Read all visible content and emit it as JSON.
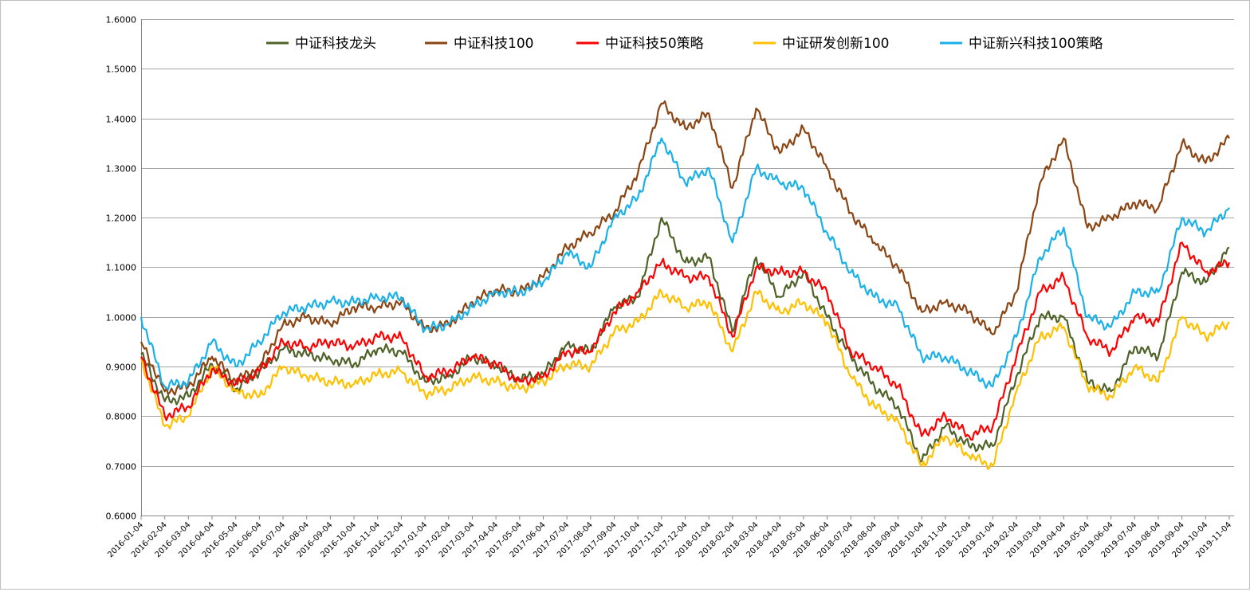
{
  "chart_data": {
    "type": "line",
    "title": "",
    "xlabel": "",
    "ylabel": "",
    "ylim": [
      0.6,
      1.6
    ],
    "ytick_step": 0.1,
    "y_tick_labels": [
      "0.6000",
      "0.7000",
      "0.8000",
      "0.9000",
      "1.0000",
      "1.1000",
      "1.2000",
      "1.3000",
      "1.4000",
      "1.5000",
      "1.6000"
    ],
    "grid": true,
    "legend_position": "top",
    "x": [
      "2016-01-04",
      "2016-02-04",
      "2016-03-04",
      "2016-04-04",
      "2016-05-04",
      "2016-06-04",
      "2016-07-04",
      "2016-08-04",
      "2016-09-04",
      "2016-10-04",
      "2016-11-04",
      "2016-12-04",
      "2017-01-04",
      "2017-02-04",
      "2017-03-04",
      "2017-04-04",
      "2017-05-04",
      "2017-06-04",
      "2017-07-04",
      "2017-08-04",
      "2017-09-04",
      "2017-10-04",
      "2017-11-04",
      "2017-12-04",
      "2018-01-04",
      "2018-02-04",
      "2018-03-04",
      "2018-04-04",
      "2018-05-04",
      "2018-06-04",
      "2018-07-04",
      "2018-08-04",
      "2018-09-04",
      "2018-10-04",
      "2018-11-04",
      "2018-12-04",
      "2019-01-04",
      "2019-02-04",
      "2019-03-04",
      "2019-04-04",
      "2019-05-04",
      "2019-06-04",
      "2019-07-04",
      "2019-08-04",
      "2019-09-04",
      "2019-10-04",
      "2019-11-04"
    ],
    "series": [
      {
        "name": "中证科技龙头",
        "color": "#4f6228",
        "values": [
          0.925,
          0.83,
          0.84,
          0.905,
          0.855,
          0.89,
          0.935,
          0.925,
          0.915,
          0.905,
          0.935,
          0.93,
          0.87,
          0.88,
          0.92,
          0.9,
          0.875,
          0.885,
          0.945,
          0.93,
          1.02,
          1.04,
          1.2,
          1.11,
          1.12,
          0.97,
          1.12,
          1.04,
          1.09,
          1.0,
          0.92,
          0.86,
          0.82,
          0.71,
          0.78,
          0.74,
          0.74,
          0.88,
          1.0,
          1.0,
          0.87,
          0.85,
          0.94,
          0.92,
          1.09,
          1.07,
          1.14
        ]
      },
      {
        "name": "中证科技100",
        "color": "#8b4513",
        "values": [
          0.95,
          0.85,
          0.86,
          0.92,
          0.87,
          0.9,
          0.985,
          1.0,
          0.985,
          1.02,
          1.02,
          1.03,
          0.975,
          0.985,
          1.03,
          1.055,
          1.05,
          1.08,
          1.14,
          1.17,
          1.21,
          1.29,
          1.43,
          1.38,
          1.41,
          1.26,
          1.42,
          1.33,
          1.38,
          1.3,
          1.21,
          1.15,
          1.1,
          1.01,
          1.03,
          1.01,
          0.965,
          1.05,
          1.27,
          1.36,
          1.18,
          1.2,
          1.23,
          1.22,
          1.35,
          1.31,
          1.36
        ]
      },
      {
        "name": "中证科技50策略",
        "color": "#ff0000",
        "values": [
          0.92,
          0.8,
          0.82,
          0.895,
          0.865,
          0.89,
          0.95,
          0.94,
          0.95,
          0.94,
          0.96,
          0.96,
          0.88,
          0.89,
          0.92,
          0.905,
          0.87,
          0.88,
          0.93,
          0.93,
          1.01,
          1.05,
          1.11,
          1.08,
          1.08,
          0.96,
          1.1,
          1.09,
          1.09,
          1.05,
          0.93,
          0.9,
          0.86,
          0.76,
          0.8,
          0.76,
          0.78,
          0.92,
          1.05,
          1.08,
          0.96,
          0.93,
          1.0,
          0.99,
          1.15,
          1.09,
          1.11
        ]
      },
      {
        "name": "中证研发创新100",
        "color": "#ffc000",
        "values": [
          0.915,
          0.78,
          0.8,
          0.9,
          0.85,
          0.84,
          0.9,
          0.88,
          0.87,
          0.865,
          0.885,
          0.89,
          0.845,
          0.855,
          0.88,
          0.87,
          0.855,
          0.87,
          0.905,
          0.9,
          0.97,
          0.99,
          1.05,
          1.02,
          1.03,
          0.93,
          1.05,
          1.01,
          1.03,
          0.99,
          0.88,
          0.82,
          0.79,
          0.7,
          0.76,
          0.72,
          0.7,
          0.85,
          0.96,
          0.98,
          0.86,
          0.84,
          0.9,
          0.87,
          1.0,
          0.96,
          0.99
        ]
      },
      {
        "name": "中证新兴科技100策略",
        "color": "#1ab0e8",
        "values": [
          1.0,
          0.86,
          0.87,
          0.95,
          0.9,
          0.95,
          1.01,
          1.02,
          1.03,
          1.03,
          1.04,
          1.04,
          0.975,
          0.985,
          1.02,
          1.05,
          1.05,
          1.07,
          1.13,
          1.1,
          1.2,
          1.24,
          1.36,
          1.27,
          1.3,
          1.15,
          1.3,
          1.27,
          1.26,
          1.17,
          1.09,
          1.04,
          1.02,
          0.92,
          0.92,
          0.89,
          0.86,
          0.96,
          1.12,
          1.18,
          1.0,
          0.98,
          1.05,
          1.05,
          1.2,
          1.17,
          1.22
        ]
      }
    ]
  }
}
